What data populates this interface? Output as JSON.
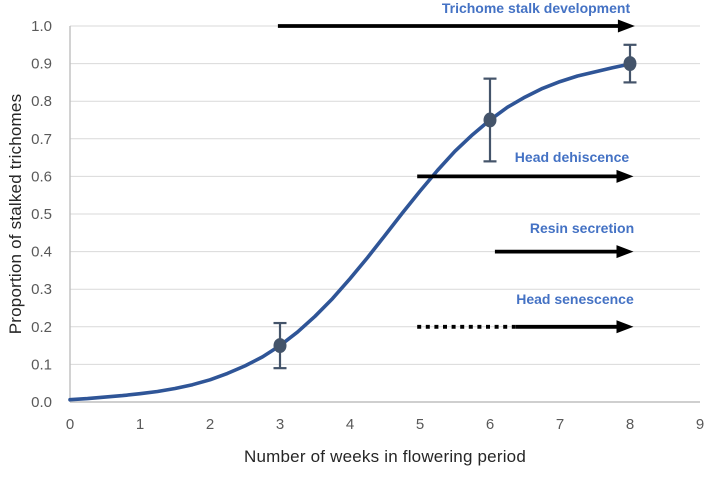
{
  "chart_data": {
    "type": "line",
    "title": "",
    "xlabel": "Number of weeks in flowering period",
    "ylabel": "Proportion of stalked trichomes",
    "xlim": [
      0,
      9
    ],
    "ylim": [
      0,
      1.0
    ],
    "x_ticks": [
      "0",
      "1",
      "2",
      "3",
      "4",
      "5",
      "6",
      "7",
      "8",
      "9"
    ],
    "y_ticks": [
      "0.0",
      "0.1",
      "0.2",
      "0.3",
      "0.4",
      "0.5",
      "0.6",
      "0.7",
      "0.8",
      "0.9",
      "1.0"
    ],
    "grid": "horizontal-only",
    "legend": "none",
    "series": [
      {
        "name": "fitted sigmoid curve",
        "type": "smooth_line",
        "x": [
          0,
          0.25,
          0.5,
          0.75,
          1,
          1.25,
          1.5,
          1.75,
          2,
          2.25,
          2.5,
          2.75,
          3,
          3.25,
          3.5,
          3.75,
          4,
          4.25,
          4.5,
          4.75,
          5,
          5.25,
          5.5,
          5.75,
          6,
          6.25,
          6.5,
          6.75,
          7,
          7.25,
          7.5,
          7.75,
          8
        ],
        "y": [
          0.006,
          0.009,
          0.013,
          0.017,
          0.022,
          0.028,
          0.036,
          0.046,
          0.059,
          0.076,
          0.096,
          0.12,
          0.15,
          0.186,
          0.228,
          0.275,
          0.328,
          0.384,
          0.443,
          0.503,
          0.561,
          0.616,
          0.667,
          0.711,
          0.75,
          0.784,
          0.811,
          0.834,
          0.852,
          0.867,
          0.878,
          0.889,
          0.899
        ]
      },
      {
        "name": "observed proportions with error bars",
        "type": "scatter_with_error_bars",
        "points": [
          {
            "x": 3,
            "y": 0.15,
            "err_low": 0.09,
            "err_high": 0.21
          },
          {
            "x": 6,
            "y": 0.75,
            "err_low": 0.64,
            "err_high": 0.86
          },
          {
            "x": 8,
            "y": 0.9,
            "err_low": 0.85,
            "err_high": 0.95
          }
        ]
      }
    ],
    "annotations": [
      {
        "label": "Trichome stalk development",
        "y": 1.0,
        "x_start": 2.97,
        "x_end": 8.07,
        "style": "solid"
      },
      {
        "label": "Head dehiscence",
        "y": 0.6,
        "x_start": 4.96,
        "x_end": 8.05,
        "style": "solid"
      },
      {
        "label": "Resin secretion",
        "y": 0.4,
        "x_start": 6.07,
        "x_end": 8.05,
        "style": "solid"
      },
      {
        "label": "Head senescence",
        "y": 0.2,
        "x_start": 4.96,
        "x_end": 8.05,
        "style": "dotted_then_solid",
        "dotted_until": 6.37
      }
    ],
    "colors": {
      "curve": "#2F5597",
      "marker": "#44546A",
      "error_bar": "#44546A",
      "annotation_text": "#4472C4",
      "arrow": "#000000",
      "gridline": "#D9D9D9",
      "axis_line": "#BFBFBF",
      "tick_label": "#595959",
      "axis_title": "#262626",
      "background": "#FFFFFF"
    }
  }
}
